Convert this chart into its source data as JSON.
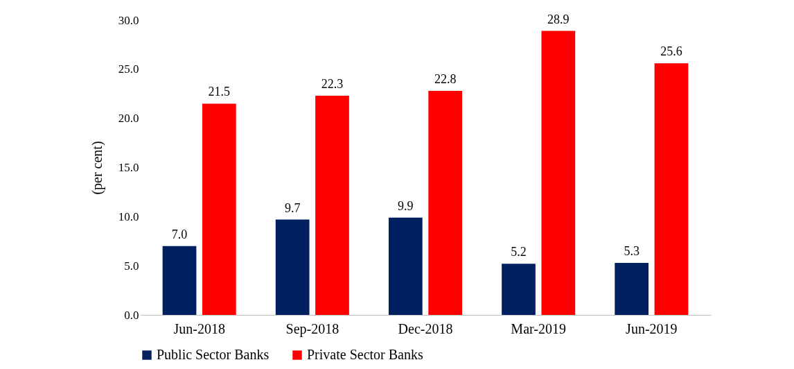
{
  "chart_data": {
    "type": "bar",
    "ylabel": "(per cent)",
    "categories": [
      "Jun-2018",
      "Sep-2018",
      "Dec-2018",
      "Mar-2019",
      "Jun-2019"
    ],
    "series": [
      {
        "name": "Public Sector Banks",
        "color": "#002060",
        "values": [
          7.0,
          9.7,
          9.9,
          5.2,
          5.3
        ],
        "value_labels": [
          "7.0",
          "9.7",
          "9.9",
          "5.2",
          "5.3"
        ]
      },
      {
        "name": "Private Sector Banks",
        "color": "#ff0000",
        "values": [
          21.5,
          22.3,
          22.8,
          28.9,
          25.6
        ],
        "value_labels": [
          "21.5",
          "22.3",
          "22.8",
          "28.9",
          "25.6"
        ]
      }
    ],
    "ylim": [
      0,
      30
    ],
    "yticks": [
      {
        "value": 0,
        "label": "0.0"
      },
      {
        "value": 5,
        "label": "5.0"
      },
      {
        "value": 10,
        "label": "10.0"
      },
      {
        "value": 15,
        "label": "15.0"
      },
      {
        "value": 20,
        "label": "20.0"
      },
      {
        "value": 25,
        "label": "25.0"
      },
      {
        "value": 30,
        "label": "30.0"
      }
    ],
    "legend": "bottom",
    "grid": false
  }
}
